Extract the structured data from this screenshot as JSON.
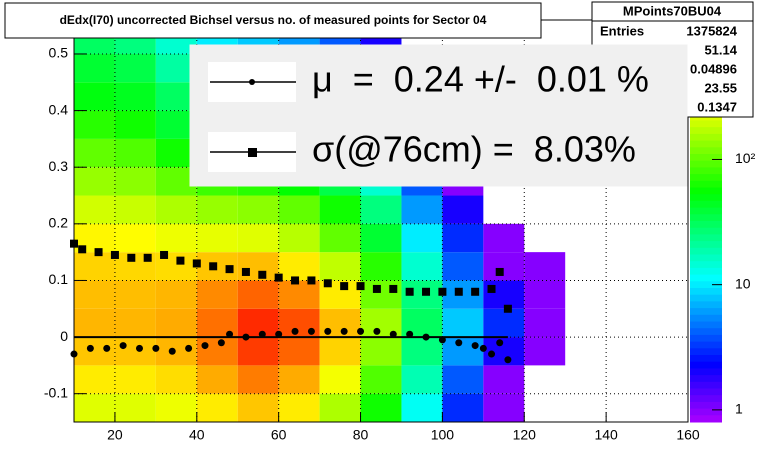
{
  "chart_data": {
    "type": "heatmap_profile",
    "title": "dEdx(I70) uncorrected Bichsel versus no. of measured points for Sector 04",
    "xlim": [
      10,
      160
    ],
    "ylim": [
      -0.15,
      0.56
    ],
    "xticks": [
      20,
      40,
      60,
      80,
      100,
      120,
      140,
      160
    ],
    "yticks": [
      -0.1,
      0,
      0.1,
      0.2,
      0.3,
      0.4,
      0.5
    ],
    "grid": true,
    "heatmap": {
      "log_z": true,
      "zlim": [
        0.8,
        1300
      ],
      "zticks": [
        1,
        10,
        {
          "value": 100,
          "label": "10²"
        }
      ],
      "xbins": [
        10,
        20,
        30,
        40,
        50,
        60,
        70,
        80,
        90,
        100,
        110,
        120,
        130,
        140
      ],
      "ybins": [
        -0.15,
        -0.1,
        -0.05,
        0,
        0.05,
        0.1,
        0.15,
        0.2,
        0.25,
        0.3,
        0.35,
        0.4,
        0.45,
        0.5,
        0.55
      ],
      "z": [
        [
          220,
          220,
          240,
          300,
          380,
          300,
          160,
          60,
          12,
          3,
          1,
          0,
          0
        ],
        [
          300,
          300,
          330,
          450,
          600,
          450,
          250,
          90,
          18,
          4,
          1,
          0,
          0
        ],
        [
          380,
          380,
          420,
          600,
          900,
          700,
          350,
          130,
          25,
          6,
          2,
          1,
          0
        ],
        [
          420,
          420,
          450,
          650,
          1000,
          800,
          400,
          150,
          30,
          8,
          3,
          1,
          0
        ],
        [
          400,
          400,
          420,
          550,
          700,
          550,
          300,
          110,
          25,
          6,
          2,
          1,
          0
        ],
        [
          350,
          340,
          330,
          380,
          400,
          300,
          180,
          70,
          15,
          4,
          1,
          1,
          0
        ],
        [
          280,
          270,
          240,
          230,
          220,
          170,
          100,
          40,
          10,
          3,
          1,
          0,
          0
        ],
        [
          200,
          190,
          160,
          140,
          130,
          100,
          60,
          25,
          6,
          2,
          0,
          0,
          0
        ],
        [
          140,
          130,
          100,
          80,
          70,
          55,
          35,
          15,
          4,
          1,
          0,
          0,
          0
        ],
        [
          100,
          90,
          60,
          45,
          40,
          30,
          20,
          8,
          2,
          0,
          0,
          0,
          0
        ],
        [
          70,
          60,
          40,
          30,
          25,
          20,
          12,
          6,
          2,
          0,
          0,
          0,
          0
        ],
        [
          50,
          45,
          30,
          20,
          15,
          12,
          8,
          4,
          1,
          0,
          0,
          0,
          0
        ],
        [
          40,
          35,
          20,
          12,
          10,
          8,
          5,
          3,
          1,
          0,
          0,
          0,
          0
        ],
        [
          30,
          25,
          15,
          10,
          8,
          6,
          4,
          2,
          0,
          0,
          0,
          0,
          0
        ]
      ]
    },
    "reference_line": {
      "y": 0,
      "x": [
        10,
        116
      ],
      "color": "#000000"
    },
    "series": [
      {
        "name": "μ  =  0.24 +/-  0.01 %",
        "marker": "circle",
        "color": "#000000",
        "x": [
          10,
          14,
          18,
          22,
          26,
          30,
          34,
          38,
          42,
          46,
          48,
          52,
          56,
          60,
          64,
          68,
          72,
          76,
          80,
          84,
          88,
          92,
          96,
          100,
          104,
          108,
          110,
          112,
          114,
          116
        ],
        "values": [
          -0.03,
          -0.02,
          -0.02,
          -0.015,
          -0.02,
          -0.02,
          -0.025,
          -0.02,
          -0.015,
          -0.01,
          0.005,
          0.0,
          0.005,
          0.005,
          0.01,
          0.01,
          0.01,
          0.01,
          0.01,
          0.01,
          0.005,
          0.005,
          0.0,
          -0.005,
          -0.01,
          -0.015,
          -0.02,
          -0.03,
          -0.01,
          -0.04
        ]
      },
      {
        "name": "σ(@76cm) =  8.03%",
        "marker": "square",
        "color": "#000000",
        "x": [
          10,
          12,
          16,
          20,
          24,
          28,
          32,
          36,
          40,
          44,
          48,
          52,
          56,
          60,
          64,
          68,
          72,
          76,
          80,
          84,
          88,
          92,
          96,
          100,
          104,
          108,
          112,
          114,
          116
        ],
        "values": [
          0.165,
          0.155,
          0.15,
          0.145,
          0.14,
          0.14,
          0.145,
          0.135,
          0.13,
          0.125,
          0.12,
          0.115,
          0.11,
          0.105,
          0.1,
          0.1,
          0.095,
          0.09,
          0.09,
          0.085,
          0.085,
          0.08,
          0.08,
          0.08,
          0.08,
          0.08,
          0.085,
          0.115,
          0.05
        ]
      }
    ],
    "stats": {
      "title": "MPoints70BU04",
      "entries_label": "Entries",
      "values": [
        1375824,
        51.14,
        0.04896,
        23.55,
        0.1347
      ]
    }
  }
}
